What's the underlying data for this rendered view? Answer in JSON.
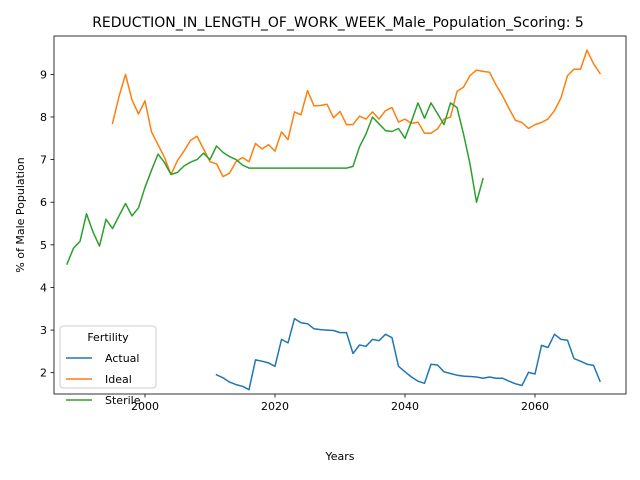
{
  "chart_data": {
    "type": "line",
    "title": "REDUCTION_IN_LENGTH_OF_WORK_WEEK_Male_Population_Scoring: 5",
    "xlabel": "Years",
    "ylabel": "% of Male Population",
    "xlim": [
      1986,
      2074
    ],
    "ylim": [
      1.5,
      9.9
    ],
    "xticks": [
      2000,
      2020,
      2040,
      2060
    ],
    "yticks": [
      2,
      3,
      4,
      5,
      6,
      7,
      8,
      9
    ],
    "grid": false,
    "legend": {
      "title": "Fertility",
      "position": "lower-left",
      "entries": [
        "Actual",
        "Ideal",
        "Sterile"
      ]
    },
    "series": [
      {
        "name": "Actual",
        "color": "#1f77b4",
        "points": [
          [
            2011,
            1.95
          ],
          [
            2012,
            1.88
          ],
          [
            2013,
            1.78
          ],
          [
            2014,
            1.72
          ],
          [
            2015,
            1.68
          ],
          [
            2016,
            1.6
          ],
          [
            2017,
            2.3
          ],
          [
            2018,
            2.27
          ],
          [
            2019,
            2.23
          ],
          [
            2020,
            2.15
          ],
          [
            2021,
            2.78
          ],
          [
            2022,
            2.7
          ],
          [
            2023,
            3.27
          ],
          [
            2024,
            3.17
          ],
          [
            2025,
            3.15
          ],
          [
            2026,
            3.03
          ],
          [
            2027,
            3.01
          ],
          [
            2028,
            3.0
          ],
          [
            2029,
            2.99
          ],
          [
            2030,
            2.94
          ],
          [
            2031,
            2.94
          ],
          [
            2032,
            2.45
          ],
          [
            2033,
            2.65
          ],
          [
            2034,
            2.62
          ],
          [
            2035,
            2.78
          ],
          [
            2036,
            2.75
          ],
          [
            2037,
            2.9
          ],
          [
            2038,
            2.82
          ],
          [
            2039,
            2.15
          ],
          [
            2040,
            2.02
          ],
          [
            2041,
            1.9
          ],
          [
            2042,
            1.8
          ],
          [
            2043,
            1.75
          ],
          [
            2044,
            2.2
          ],
          [
            2045,
            2.18
          ],
          [
            2046,
            2.02
          ],
          [
            2047,
            1.98
          ],
          [
            2048,
            1.94
          ],
          [
            2049,
            1.92
          ],
          [
            2050,
            1.91
          ],
          [
            2051,
            1.9
          ],
          [
            2052,
            1.87
          ],
          [
            2053,
            1.9
          ],
          [
            2054,
            1.87
          ],
          [
            2055,
            1.87
          ],
          [
            2056,
            1.8
          ],
          [
            2057,
            1.74
          ],
          [
            2058,
            1.7
          ],
          [
            2059,
            2.01
          ],
          [
            2060,
            1.97
          ],
          [
            2061,
            2.64
          ],
          [
            2062,
            2.59
          ],
          [
            2063,
            2.9
          ],
          [
            2064,
            2.78
          ],
          [
            2065,
            2.76
          ],
          [
            2066,
            2.33
          ],
          [
            2067,
            2.27
          ],
          [
            2068,
            2.2
          ],
          [
            2069,
            2.17
          ],
          [
            2070,
            1.8
          ]
        ]
      },
      {
        "name": "Ideal",
        "color": "#ff7f0e",
        "points": [
          [
            1995,
            7.85
          ],
          [
            1996,
            8.48
          ],
          [
            1997,
            9.0
          ],
          [
            1998,
            8.4
          ],
          [
            1999,
            8.07
          ],
          [
            2000,
            8.38
          ],
          [
            2001,
            7.65
          ],
          [
            2002,
            7.35
          ],
          [
            2003,
            7.05
          ],
          [
            2004,
            6.65
          ],
          [
            2005,
            6.98
          ],
          [
            2006,
            7.2
          ],
          [
            2007,
            7.45
          ],
          [
            2008,
            7.55
          ],
          [
            2009,
            7.25
          ],
          [
            2010,
            6.95
          ],
          [
            2011,
            6.9
          ],
          [
            2012,
            6.6
          ],
          [
            2013,
            6.68
          ],
          [
            2014,
            6.95
          ],
          [
            2015,
            7.05
          ],
          [
            2016,
            6.95
          ],
          [
            2017,
            7.38
          ],
          [
            2018,
            7.25
          ],
          [
            2019,
            7.35
          ],
          [
            2020,
            7.2
          ],
          [
            2021,
            7.65
          ],
          [
            2022,
            7.47
          ],
          [
            2023,
            8.12
          ],
          [
            2024,
            8.05
          ],
          [
            2025,
            8.62
          ],
          [
            2026,
            8.26
          ],
          [
            2027,
            8.27
          ],
          [
            2028,
            8.3
          ],
          [
            2029,
            7.98
          ],
          [
            2030,
            8.13
          ],
          [
            2031,
            7.82
          ],
          [
            2032,
            7.82
          ],
          [
            2033,
            8.02
          ],
          [
            2034,
            7.95
          ],
          [
            2035,
            8.12
          ],
          [
            2036,
            7.95
          ],
          [
            2037,
            8.15
          ],
          [
            2038,
            8.22
          ],
          [
            2039,
            7.88
          ],
          [
            2040,
            7.95
          ],
          [
            2041,
            7.85
          ],
          [
            2042,
            7.88
          ],
          [
            2043,
            7.62
          ],
          [
            2044,
            7.62
          ],
          [
            2045,
            7.72
          ],
          [
            2046,
            7.95
          ],
          [
            2047,
            8.0
          ],
          [
            2048,
            8.6
          ],
          [
            2049,
            8.7
          ],
          [
            2050,
            8.97
          ],
          [
            2051,
            9.1
          ],
          [
            2052,
            9.07
          ],
          [
            2053,
            9.05
          ],
          [
            2054,
            8.75
          ],
          [
            2055,
            8.5
          ],
          [
            2056,
            8.2
          ],
          [
            2057,
            7.92
          ],
          [
            2058,
            7.87
          ],
          [
            2059,
            7.73
          ],
          [
            2060,
            7.82
          ],
          [
            2061,
            7.87
          ],
          [
            2062,
            7.95
          ],
          [
            2063,
            8.15
          ],
          [
            2064,
            8.45
          ],
          [
            2065,
            8.97
          ],
          [
            2066,
            9.12
          ],
          [
            2067,
            9.12
          ],
          [
            2068,
            9.57
          ],
          [
            2069,
            9.25
          ],
          [
            2070,
            9.02
          ]
        ]
      },
      {
        "name": "Sterile",
        "color": "#2ca02c",
        "points": [
          [
            1988,
            4.55
          ],
          [
            1989,
            4.92
          ],
          [
            1990,
            5.08
          ],
          [
            1991,
            5.73
          ],
          [
            1992,
            5.3
          ],
          [
            1993,
            4.97
          ],
          [
            1994,
            5.6
          ],
          [
            1995,
            5.38
          ],
          [
            1996,
            5.68
          ],
          [
            1997,
            5.97
          ],
          [
            1998,
            5.68
          ],
          [
            1999,
            5.87
          ],
          [
            2000,
            6.35
          ],
          [
            2001,
            6.75
          ],
          [
            2002,
            7.13
          ],
          [
            2003,
            6.93
          ],
          [
            2004,
            6.65
          ],
          [
            2005,
            6.7
          ],
          [
            2006,
            6.85
          ],
          [
            2007,
            6.94
          ],
          [
            2008,
            7.0
          ],
          [
            2009,
            7.15
          ],
          [
            2010,
            7.0
          ],
          [
            2011,
            7.32
          ],
          [
            2012,
            7.17
          ],
          [
            2013,
            7.07
          ],
          [
            2014,
            7.0
          ],
          [
            2015,
            6.87
          ],
          [
            2016,
            6.8
          ],
          [
            2017,
            6.8
          ],
          [
            2018,
            6.8
          ],
          [
            2019,
            6.8
          ],
          [
            2020,
            6.8
          ],
          [
            2021,
            6.8
          ],
          [
            2022,
            6.8
          ],
          [
            2023,
            6.8
          ],
          [
            2024,
            6.8
          ],
          [
            2025,
            6.8
          ],
          [
            2026,
            6.8
          ],
          [
            2027,
            6.8
          ],
          [
            2028,
            6.8
          ],
          [
            2029,
            6.8
          ],
          [
            2030,
            6.8
          ],
          [
            2031,
            6.8
          ],
          [
            2032,
            6.84
          ],
          [
            2033,
            7.3
          ],
          [
            2034,
            7.6
          ],
          [
            2035,
            8.0
          ],
          [
            2036,
            7.84
          ],
          [
            2037,
            7.68
          ],
          [
            2038,
            7.66
          ],
          [
            2039,
            7.73
          ],
          [
            2040,
            7.5
          ],
          [
            2041,
            7.9
          ],
          [
            2042,
            8.33
          ],
          [
            2043,
            7.97
          ],
          [
            2044,
            8.33
          ],
          [
            2045,
            8.08
          ],
          [
            2046,
            7.82
          ],
          [
            2047,
            8.33
          ],
          [
            2048,
            8.22
          ],
          [
            2049,
            7.6
          ],
          [
            2050,
            6.9
          ],
          [
            2051,
            6.0
          ],
          [
            2052,
            6.55
          ]
        ]
      }
    ]
  }
}
